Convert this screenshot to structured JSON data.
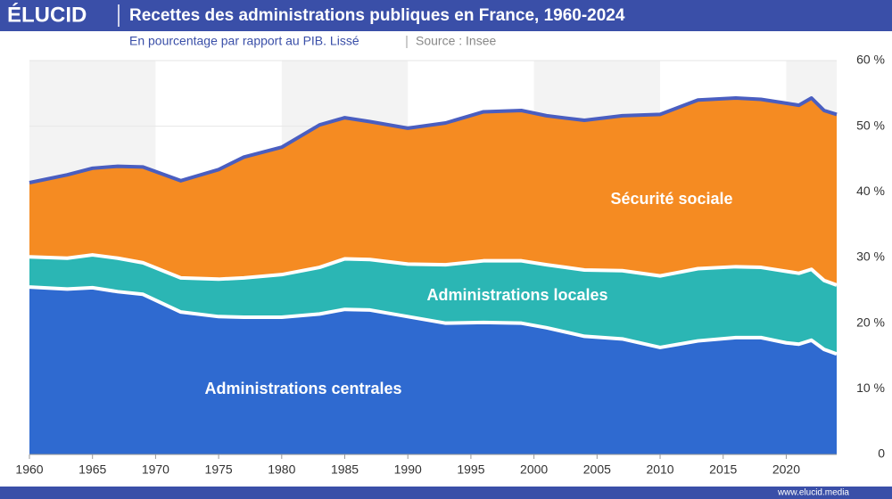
{
  "brand": "ÉLUCID",
  "footer": "www.elucid.media",
  "chart_data": {
    "type": "stacked_area",
    "title": "Recettes des administrations publiques en France, 1960-2024",
    "subtitle": "En pourcentage par rapport au PIB. Lissé",
    "source": "Source : Insee",
    "x": [
      1960,
      1963,
      1965,
      1967,
      1969,
      1972,
      1975,
      1977,
      1980,
      1983,
      1985,
      1987,
      1990,
      1993,
      1996,
      1999,
      2001,
      2004,
      2007,
      2010,
      2013,
      2016,
      2018,
      2020,
      2021,
      2022,
      2023,
      2024
    ],
    "series": [
      {
        "name": "Administrations centrales",
        "color": "#2f6ad0",
        "values": [
          25.5,
          25.2,
          25.4,
          24.8,
          24.4,
          21.7,
          21.0,
          20.9,
          20.9,
          21.4,
          22.1,
          22.0,
          21.0,
          20.0,
          20.1,
          20.0,
          19.3,
          18.0,
          17.6,
          16.3,
          17.3,
          17.8,
          17.8,
          17.0,
          16.8,
          17.4,
          16.0,
          15.3
        ]
      },
      {
        "name": "Administrations locales",
        "color": "#2bb6b4",
        "values": [
          4.6,
          4.7,
          5.0,
          5.1,
          4.8,
          5.2,
          5.7,
          6.0,
          6.5,
          7.1,
          7.7,
          7.7,
          8.0,
          8.9,
          9.4,
          9.5,
          9.6,
          10.1,
          10.4,
          10.9,
          11.0,
          10.8,
          10.7,
          10.9,
          10.8,
          10.8,
          10.5,
          10.5
        ]
      },
      {
        "name": "Sécurité sociale",
        "color": "#f58b22",
        "values": [
          11.3,
          12.7,
          13.2,
          14.0,
          14.6,
          14.8,
          16.7,
          18.4,
          19.4,
          21.7,
          21.5,
          21.0,
          20.7,
          21.6,
          22.7,
          22.9,
          22.7,
          22.8,
          23.6,
          24.6,
          25.7,
          25.7,
          25.6,
          25.6,
          25.6,
          26.1,
          25.9,
          26.0
        ]
      }
    ],
    "xlim": [
      1960,
      2024
    ],
    "xticks": [
      1960,
      1965,
      1970,
      1975,
      1980,
      1985,
      1990,
      1995,
      2000,
      2005,
      2010,
      2015,
      2020
    ],
    "ylim": [
      0,
      60
    ],
    "yticks": [
      0,
      {
        "value": 10,
        "label": "10 %"
      },
      {
        "value": 20,
        "label": "20 %"
      },
      {
        "value": 30,
        "label": "30 %"
      },
      {
        "value": 40,
        "label": "40 %"
      },
      {
        "value": 50,
        "label": "50 %"
      },
      {
        "value": 60,
        "label": "60 %"
      }
    ],
    "grid": true
  }
}
